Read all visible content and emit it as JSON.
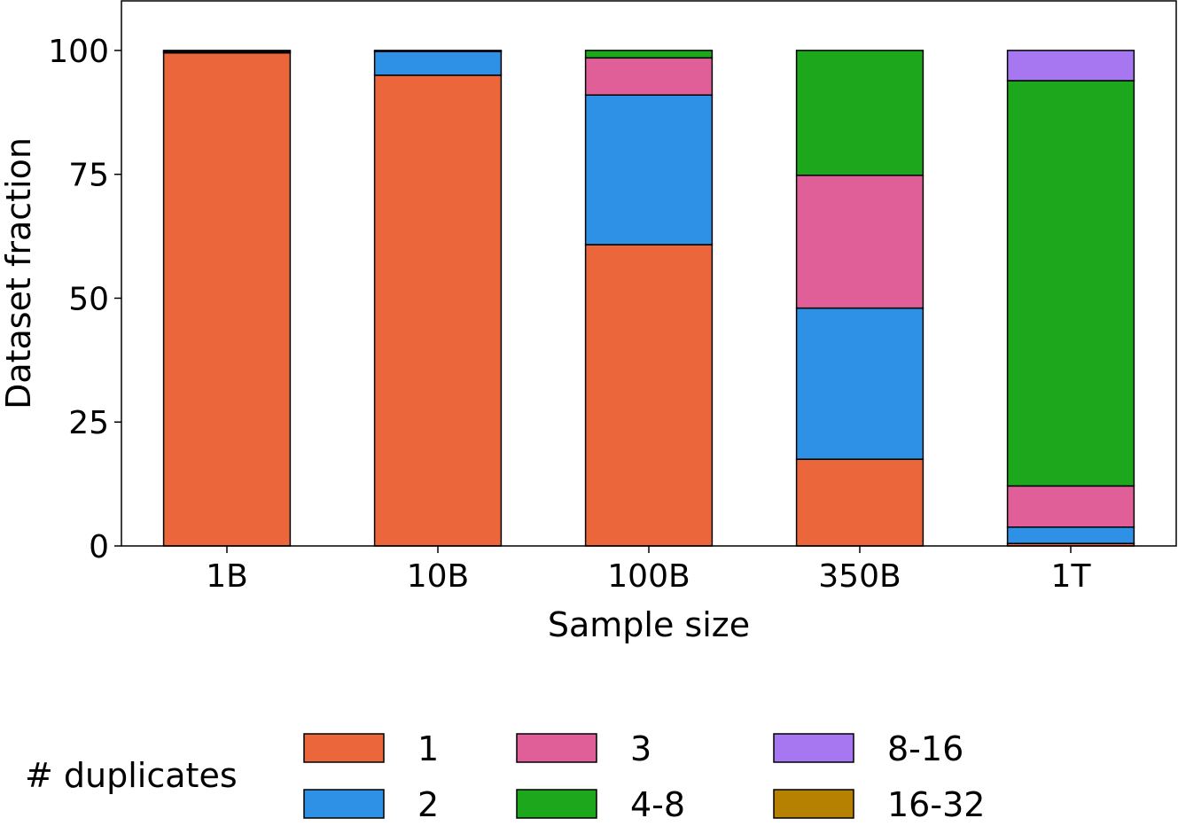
{
  "chart_data": {
    "type": "bar",
    "stacked": true,
    "title": "",
    "xlabel": "Sample size",
    "ylabel": "Dataset fraction",
    "ylim": [
      0,
      110
    ],
    "yticks": [
      0,
      25,
      50,
      75,
      100
    ],
    "ytick_labels": [
      "0",
      "25",
      "50",
      "75",
      "100"
    ],
    "categories": [
      "1B",
      "10B",
      "100B",
      "350B",
      "1T"
    ],
    "series": [
      {
        "name": "1",
        "color": "#eb663b",
        "values": [
          99.5,
          95.0,
          60.8,
          17.5,
          0.5
        ]
      },
      {
        "name": "2",
        "color": "#2e91e5",
        "values": [
          0.3,
          4.8,
          30.2,
          30.5,
          3.3
        ]
      },
      {
        "name": "3",
        "color": "#e15f99",
        "values": [
          0.1,
          0.1,
          7.5,
          26.8,
          8.3
        ]
      },
      {
        "name": "4-8",
        "color": "#1ca71c",
        "values": [
          0.1,
          0.1,
          1.5,
          25.2,
          81.8
        ]
      },
      {
        "name": "8-16",
        "color": "#a777f1",
        "values": [
          0.0,
          0.0,
          0.0,
          0.0,
          6.1
        ]
      },
      {
        "name": "16-32",
        "color": "#b68100",
        "values": [
          0.0,
          0.0,
          0.0,
          0.0,
          0.0
        ]
      }
    ],
    "legend_title": "# duplicates",
    "legend_position": "bottom",
    "grid": false
  }
}
